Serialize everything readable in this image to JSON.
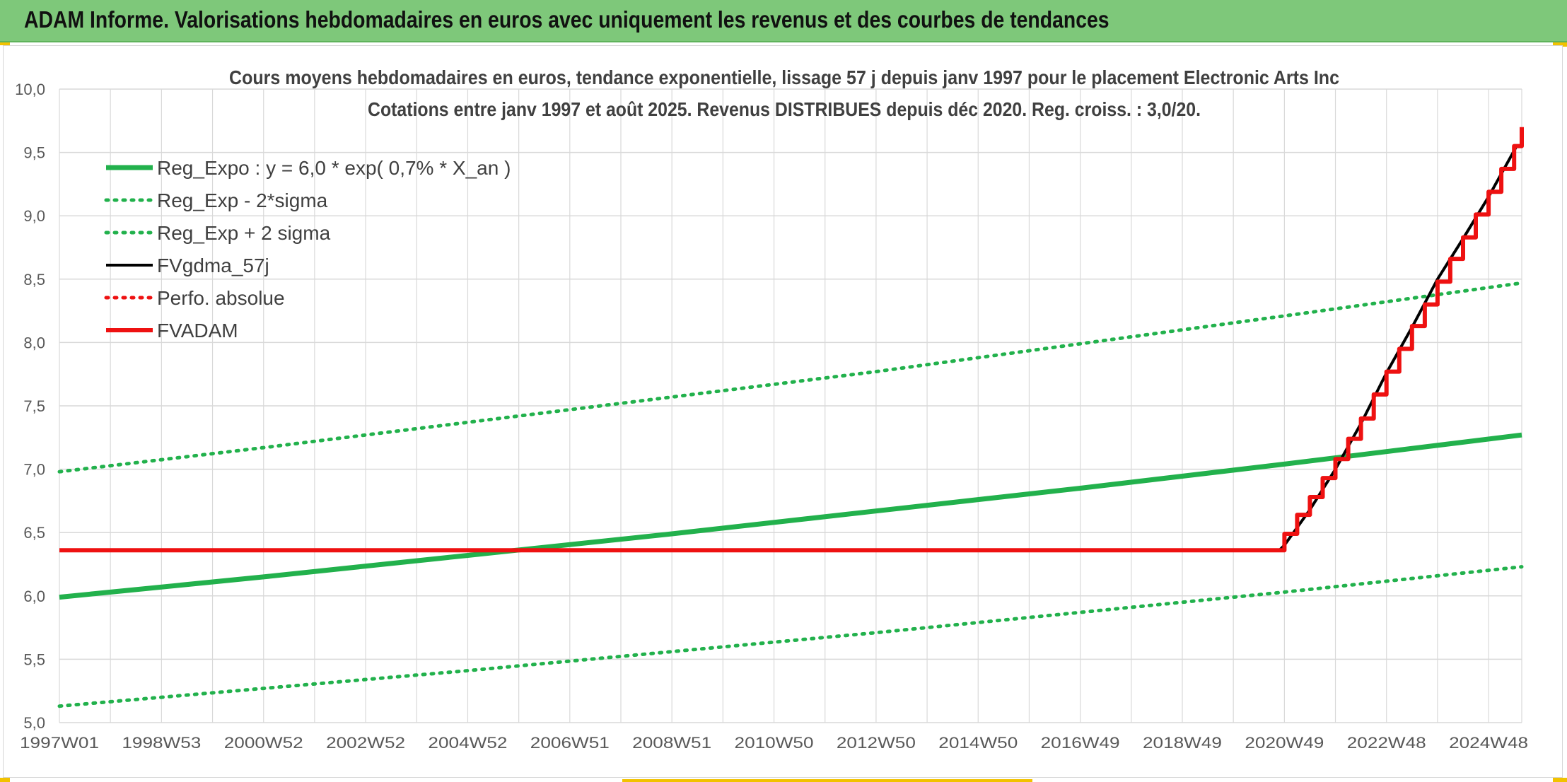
{
  "header": {
    "title": "ADAM Informe. Valorisations hebdomadaires en euros avec uniquement les revenus et des courbes de tendances"
  },
  "colors": {
    "banner": "#7ec87a",
    "accent_corner": "#f2c200",
    "reg_green": "#22b14c",
    "red": "#ee1111",
    "black": "#000000",
    "grid": "#d9d9d9"
  },
  "chart_data": {
    "type": "line",
    "title": "Cours moyens hebdomadaires en euros, tendance exponentielle, lissage 57 j depuis janv 1997 pour le placement Electronic Arts Inc",
    "subtitle": "Cotations entre janv 1997 et août 2025. Revenus DISTRIBUES depuis déc 2020. Reg. croiss. : 3,0/20.",
    "xlabel": "",
    "ylabel": "",
    "x_unit": "year (decimal)",
    "xlim": [
      1997.0,
      2025.65
    ],
    "ylim": [
      5.0,
      10.0
    ],
    "y_ticks": [
      "5,0",
      "5,5",
      "6,0",
      "6,5",
      "7,0",
      "7,5",
      "8,0",
      "8,5",
      "9,0",
      "9,5",
      "10,0"
    ],
    "x_ticks": [
      {
        "x": 1997.0,
        "label": "1997W01"
      },
      {
        "x": 1999.0,
        "label": "1998W53"
      },
      {
        "x": 2001.0,
        "label": "2000W52"
      },
      {
        "x": 2003.0,
        "label": "2002W52"
      },
      {
        "x": 2005.0,
        "label": "2004W52"
      },
      {
        "x": 2007.0,
        "label": "2006W51"
      },
      {
        "x": 2009.0,
        "label": "2008W51"
      },
      {
        "x": 2011.0,
        "label": "2010W50"
      },
      {
        "x": 2013.0,
        "label": "2012W50"
      },
      {
        "x": 2015.0,
        "label": "2014W50"
      },
      {
        "x": 2017.0,
        "label": "2016W49"
      },
      {
        "x": 2019.0,
        "label": "2018W49"
      },
      {
        "x": 2021.0,
        "label": "2020W49"
      },
      {
        "x": 2023.0,
        "label": "2022W48"
      },
      {
        "x": 2025.0,
        "label": "2024W48"
      }
    ],
    "grid": true,
    "legend_position": "top-left",
    "series": [
      {
        "name": "Reg_Expo : y = 6,0 * exp( 0,7% *  X_an )",
        "color": "#22b14c",
        "style": "solid",
        "x": [
          1997.0,
          2001.0,
          2005.0,
          2009.0,
          2013.0,
          2017.0,
          2021.0,
          2025.65
        ],
        "y": [
          5.99,
          6.15,
          6.32,
          6.49,
          6.67,
          6.85,
          7.04,
          7.27
        ]
      },
      {
        "name": "Reg_Exp - 2*sigma",
        "color": "#22b14c",
        "style": "dotted",
        "x": [
          1997.0,
          2001.0,
          2005.0,
          2009.0,
          2013.0,
          2017.0,
          2021.0,
          2025.65
        ],
        "y": [
          5.13,
          5.27,
          5.41,
          5.56,
          5.71,
          5.87,
          6.03,
          6.23
        ]
      },
      {
        "name": "Reg_Exp + 2 sigma",
        "color": "#22b14c",
        "style": "dotted",
        "x": [
          1997.0,
          2001.0,
          2005.0,
          2009.0,
          2013.0,
          2017.0,
          2021.0,
          2025.65
        ],
        "y": [
          6.98,
          7.17,
          7.37,
          7.57,
          7.77,
          7.99,
          8.21,
          8.47
        ]
      },
      {
        "name": "FVgdma_57j",
        "color": "#000000",
        "style": "solid",
        "x": [
          1997.0,
          2020.9,
          2021.0,
          2021.5,
          2022.0,
          2022.5,
          2023.0,
          2023.5,
          2024.0,
          2024.5,
          2025.0,
          2025.55
        ],
        "y": [
          6.36,
          6.36,
          6.4,
          6.68,
          7.0,
          7.36,
          7.76,
          8.12,
          8.5,
          8.82,
          9.15,
          9.55
        ]
      },
      {
        "name": "Perfo. absolue",
        "color": "#ee1111",
        "style": "dotted",
        "x": [],
        "y": []
      },
      {
        "name": "FVADAM",
        "color": "#ee1111",
        "style": "solid",
        "x": [
          1997.0,
          2021.0,
          2021.25,
          2021.5,
          2021.75,
          2022.0,
          2022.25,
          2022.5,
          2022.75,
          2023.0,
          2023.25,
          2023.5,
          2023.75,
          2024.0,
          2024.25,
          2024.5,
          2024.75,
          2025.0,
          2025.25,
          2025.5,
          2025.65
        ],
        "y": [
          6.36,
          6.49,
          6.64,
          6.78,
          6.93,
          7.08,
          7.24,
          7.4,
          7.59,
          7.77,
          7.95,
          8.13,
          8.3,
          8.48,
          8.66,
          8.83,
          9.01,
          9.19,
          9.37,
          9.55,
          9.7
        ]
      }
    ]
  }
}
